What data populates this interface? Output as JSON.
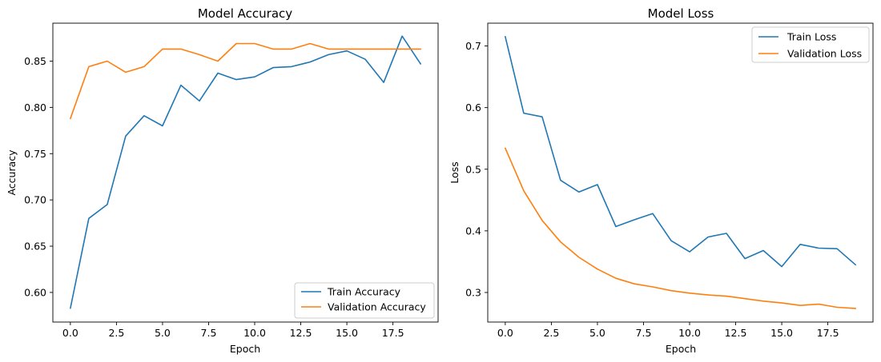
{
  "chart_data": [
    {
      "type": "line",
      "title": "Model Accuracy",
      "xlabel": "Epoch",
      "ylabel": "Accuracy",
      "xlim": [
        -0.95,
        19.95
      ],
      "ylim": [
        0.568,
        0.891
      ],
      "xticks": [
        0.0,
        2.5,
        5.0,
        7.5,
        10.0,
        12.5,
        15.0,
        17.5
      ],
      "xtick_labels": [
        "0.0",
        "2.5",
        "5.0",
        "7.5",
        "10.0",
        "12.5",
        "15.0",
        "17.5"
      ],
      "yticks": [
        0.6,
        0.65,
        0.7,
        0.75,
        0.8,
        0.85
      ],
      "ytick_labels": [
        "0.60",
        "0.65",
        "0.70",
        "0.75",
        "0.80",
        "0.85"
      ],
      "legend_position": "lower-right",
      "grid": false,
      "x": [
        0,
        1,
        2,
        3,
        4,
        5,
        6,
        7,
        8,
        9,
        10,
        11,
        12,
        13,
        14,
        15,
        16,
        17,
        18,
        19
      ],
      "series": [
        {
          "name": "Train Accuracy",
          "color": "#1f77b4",
          "values": [
            0.583,
            0.68,
            0.695,
            0.769,
            0.791,
            0.78,
            0.824,
            0.807,
            0.837,
            0.83,
            0.833,
            0.843,
            0.844,
            0.849,
            0.857,
            0.861,
            0.852,
            0.827,
            0.877,
            0.847
          ]
        },
        {
          "name": "Validation Accuracy",
          "color": "#ff7f0e",
          "values": [
            0.788,
            0.844,
            0.85,
            0.838,
            0.844,
            0.863,
            0.863,
            0.857,
            0.85,
            0.869,
            0.869,
            0.863,
            0.863,
            0.869,
            0.863,
            0.863,
            0.863,
            0.863,
            0.863,
            0.863
          ]
        }
      ]
    },
    {
      "type": "line",
      "title": "Model Loss",
      "xlabel": "Epoch",
      "ylabel": "Loss",
      "xlim": [
        -0.95,
        19.95
      ],
      "ylim": [
        0.252,
        0.737
      ],
      "xticks": [
        0.0,
        2.5,
        5.0,
        7.5,
        10.0,
        12.5,
        15.0,
        17.5
      ],
      "xtick_labels": [
        "0.0",
        "2.5",
        "5.0",
        "7.5",
        "10.0",
        "12.5",
        "15.0",
        "17.5"
      ],
      "yticks": [
        0.3,
        0.4,
        0.5,
        0.6,
        0.7
      ],
      "ytick_labels": [
        "0.3",
        "0.4",
        "0.5",
        "0.6",
        "0.7"
      ],
      "legend_position": "upper-right",
      "grid": false,
      "x": [
        0,
        1,
        2,
        3,
        4,
        5,
        6,
        7,
        8,
        9,
        10,
        11,
        12,
        13,
        14,
        15,
        16,
        17,
        18,
        19
      ],
      "series": [
        {
          "name": "Train Loss",
          "color": "#1f77b4",
          "values": [
            0.715,
            0.591,
            0.585,
            0.482,
            0.463,
            0.475,
            0.407,
            0.418,
            0.428,
            0.384,
            0.366,
            0.39,
            0.396,
            0.355,
            0.368,
            0.342,
            0.378,
            0.372,
            0.371,
            0.345
          ]
        },
        {
          "name": "Validation Loss",
          "color": "#ff7f0e",
          "values": [
            0.534,
            0.465,
            0.417,
            0.382,
            0.357,
            0.338,
            0.323,
            0.314,
            0.309,
            0.303,
            0.299,
            0.296,
            0.294,
            0.29,
            0.286,
            0.283,
            0.279,
            0.281,
            0.276,
            0.274
          ]
        }
      ]
    }
  ]
}
